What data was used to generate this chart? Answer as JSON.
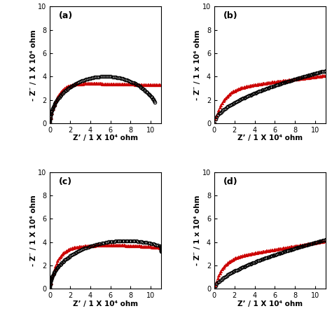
{
  "panels": [
    "(a)",
    "(b)",
    "(c)",
    "(d)"
  ],
  "xlabels": [
    "Z’ / 1 X 10⁴ ohm",
    "Z’ / 1 X 10⁴ ohm",
    "Z’ / 1 X 10⁴ ohm",
    "Z’ / 1 X 10⁴ ohm"
  ],
  "ylabels": [
    "- Z″ / 1 X 10⁴ ohm",
    "- Z″ / 1 x 10⁴ ohm",
    "- Z″ / 1 x 10⁴ ohm",
    "- Z″ / 1 x 10⁴ ohm"
  ],
  "xlim": [
    0,
    11
  ],
  "ylim": [
    0,
    10
  ],
  "xticks": [
    0,
    2,
    4,
    6,
    8,
    10
  ],
  "yticks": [
    0,
    2,
    4,
    6,
    8,
    10
  ],
  "circle_color": "#000000",
  "triangle_color": "#cc0000",
  "bg_color": "white",
  "panel_label_fontsize": 9,
  "axis_label_fontsize": 7.5,
  "tick_fontsize": 7,
  "marker_size_circle": 3.2,
  "marker_size_triangle": 3.5
}
